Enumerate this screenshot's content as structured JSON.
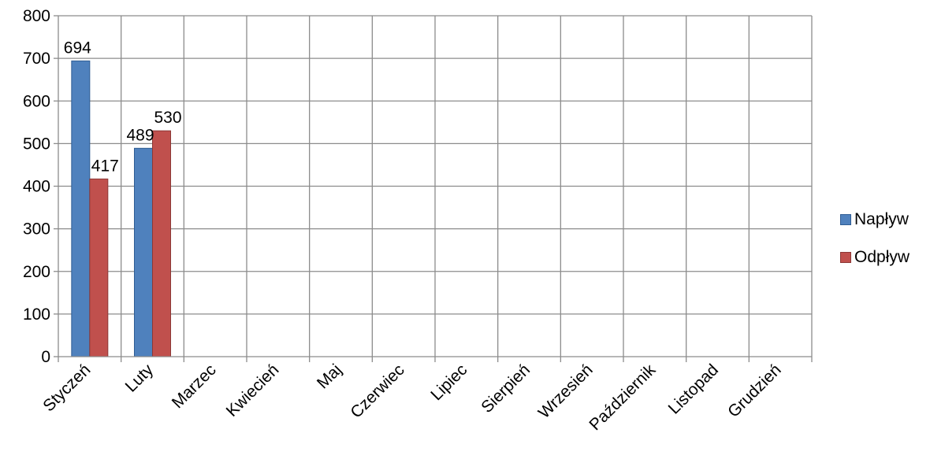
{
  "chart_data": {
    "type": "bar",
    "categories": [
      "Styczeń",
      "Luty",
      "Marzec",
      "Kwiecień",
      "Maj",
      "Czerwiec",
      "Lipiec",
      "Sierpień",
      "Wrzesień",
      "Październik",
      "Listopad",
      "Grudzień"
    ],
    "series": [
      {
        "name": "Napływ",
        "values": [
          694,
          489,
          null,
          null,
          null,
          null,
          null,
          null,
          null,
          null,
          null,
          null
        ],
        "color": "#4F81BD",
        "border": "#2F5D94"
      },
      {
        "name": "Odpływ",
        "values": [
          417,
          530,
          null,
          null,
          null,
          null,
          null,
          null,
          null,
          null,
          null,
          null
        ],
        "color": "#C0504D",
        "border": "#8C3836"
      }
    ],
    "yticks": [
      0,
      100,
      200,
      300,
      400,
      500,
      600,
      700,
      800
    ],
    "ylim": [
      0,
      800
    ],
    "title": "",
    "xlabel": "",
    "ylabel": "",
    "grid": "both",
    "legend_position": "right",
    "data_labels": true
  }
}
